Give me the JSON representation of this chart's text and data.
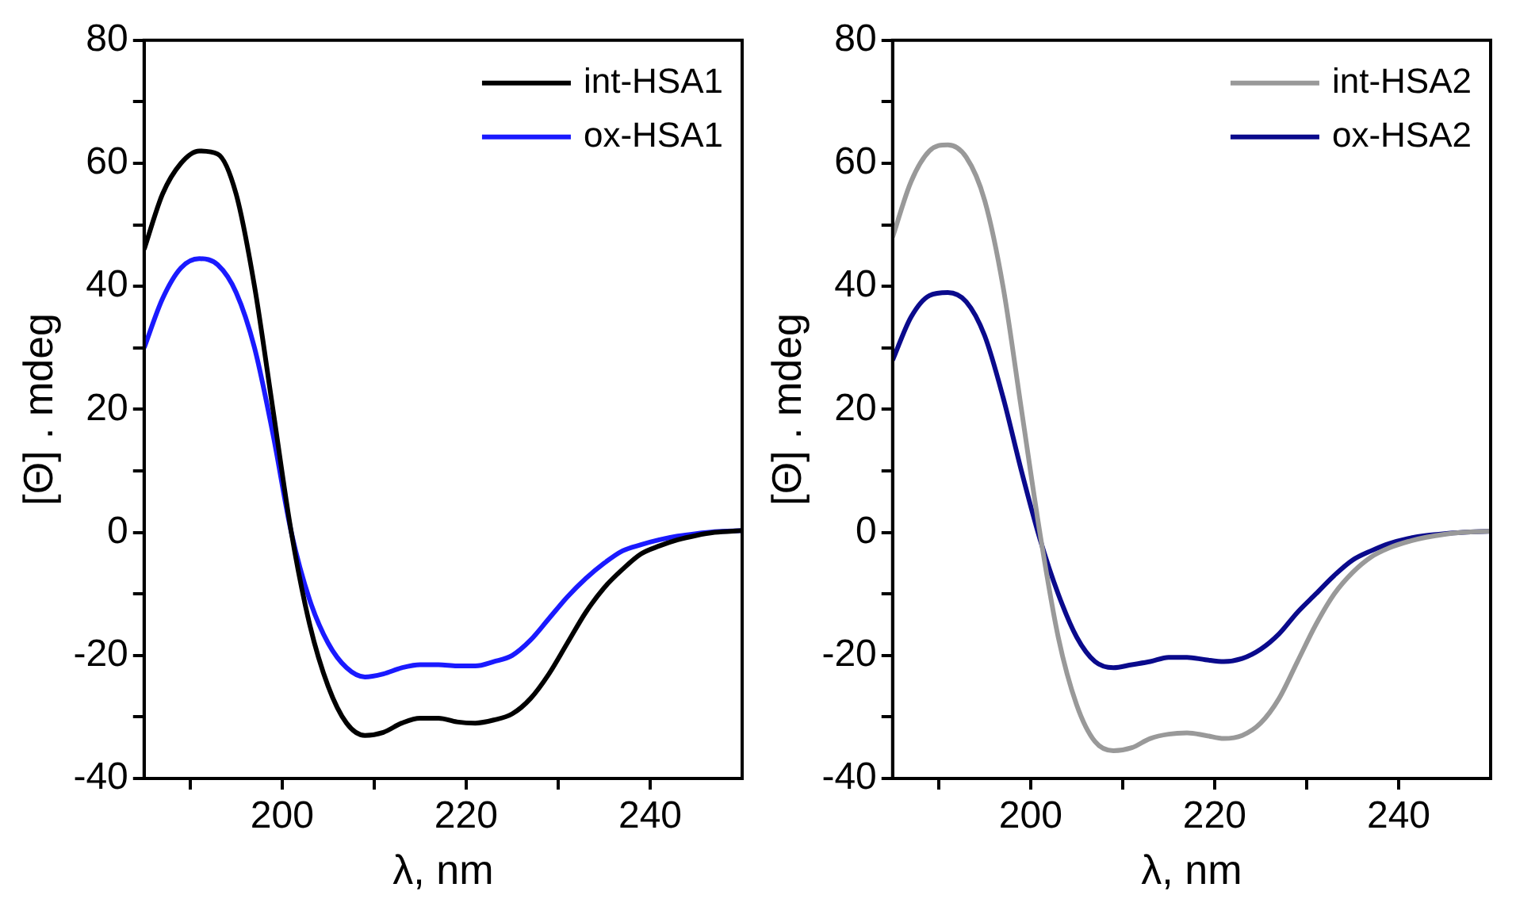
{
  "chart_data": [
    {
      "type": "line",
      "xlabel": "λ, nm",
      "ylabel": "[Θ] . mdeg",
      "xlim": [
        185,
        250
      ],
      "ylim": [
        -40,
        80
      ],
      "xticks": [
        {
          "value": 190,
          "label": null
        },
        200,
        {
          "value": 210,
          "label": null
        },
        220,
        {
          "value": 230,
          "label": null
        },
        240
      ],
      "yticks": [
        -40,
        {
          "value": -30,
          "label": null
        },
        -20,
        {
          "value": -10,
          "label": null
        },
        0,
        {
          "value": 10,
          "label": null
        },
        20,
        {
          "value": 30,
          "label": null
        },
        40,
        {
          "value": 50,
          "label": null
        },
        60,
        {
          "value": 70,
          "label": null
        },
        80
      ],
      "grid": false,
      "legend": "top right",
      "marker": "none",
      "line_style": "solid",
      "x": [
        185,
        187,
        189,
        191,
        193,
        195,
        197,
        199,
        201,
        203,
        205,
        207,
        209,
        211,
        213,
        215,
        217,
        219,
        221,
        223,
        225,
        227,
        229,
        231,
        233,
        235,
        237,
        239,
        241,
        243,
        245,
        247,
        250
      ],
      "series": [
        {
          "name": "int-HSA1",
          "color": "#000000",
          "values": [
            46,
            55,
            60,
            62,
            61.5,
            55,
            40,
            20,
            0,
            -15,
            -25,
            -31,
            -33,
            -32.5,
            -31,
            -30.2,
            -30.2,
            -30.8,
            -31,
            -30.5,
            -29.5,
            -27,
            -23,
            -18,
            -13,
            -9,
            -6,
            -3.5,
            -2.2,
            -1.2,
            -0.5,
            0,
            0.3
          ]
        },
        {
          "name": "ox-HSA1",
          "color": "#1a1aff",
          "values": [
            30,
            38,
            43,
            44.5,
            43.5,
            39,
            30,
            16,
            0,
            -11,
            -18,
            -22,
            -23.5,
            -23,
            -22,
            -21.5,
            -21.5,
            -21.7,
            -21.7,
            -21,
            -20,
            -17.5,
            -14,
            -10.5,
            -7.5,
            -5,
            -3,
            -2,
            -1.2,
            -0.6,
            -0.2,
            0.1,
            0.3
          ]
        }
      ]
    },
    {
      "type": "line",
      "xlabel": "λ, nm",
      "ylabel": "[Θ] . mdeg",
      "xlim": [
        185,
        250
      ],
      "ylim": [
        -40,
        80
      ],
      "xticks": [
        {
          "value": 190,
          "label": null
        },
        200,
        {
          "value": 210,
          "label": null
        },
        220,
        {
          "value": 230,
          "label": null
        },
        240
      ],
      "yticks": [
        -40,
        {
          "value": -30,
          "label": null
        },
        -20,
        {
          "value": -10,
          "label": null
        },
        0,
        {
          "value": 10,
          "label": null
        },
        20,
        {
          "value": 30,
          "label": null
        },
        40,
        {
          "value": 50,
          "label": null
        },
        60,
        {
          "value": 70,
          "label": null
        },
        80
      ],
      "grid": false,
      "legend": "top right",
      "marker": "none",
      "line_style": "solid",
      "x": [
        185,
        187,
        189,
        191,
        193,
        195,
        197,
        199,
        201,
        203,
        205,
        207,
        209,
        211,
        213,
        215,
        217,
        219,
        221,
        223,
        225,
        227,
        229,
        231,
        233,
        235,
        237,
        239,
        241,
        243,
        245,
        247,
        250
      ],
      "series": [
        {
          "name": "int-HSA2",
          "color": "#999999",
          "values": [
            48,
            57,
            62,
            63,
            61,
            54,
            40,
            20,
            0,
            -17,
            -28,
            -34,
            -35.5,
            -35,
            -33.5,
            -32.8,
            -32.6,
            -33,
            -33.5,
            -33,
            -31,
            -27,
            -21,
            -15,
            -10,
            -6.5,
            -4,
            -2.5,
            -1.5,
            -0.8,
            -0.3,
            0,
            0.2
          ]
        },
        {
          "name": "ox-HSA2",
          "color": "#0a0a8c",
          "values": [
            28,
            35,
            38.5,
            39,
            37.5,
            32,
            22,
            10,
            -1,
            -10,
            -17,
            -21,
            -22,
            -21.5,
            -21,
            -20.3,
            -20.3,
            -20.7,
            -21,
            -20.5,
            -19,
            -16.5,
            -13,
            -10,
            -7,
            -4.5,
            -3,
            -1.8,
            -1,
            -0.5,
            -0.2,
            0,
            0.2
          ]
        }
      ]
    }
  ]
}
